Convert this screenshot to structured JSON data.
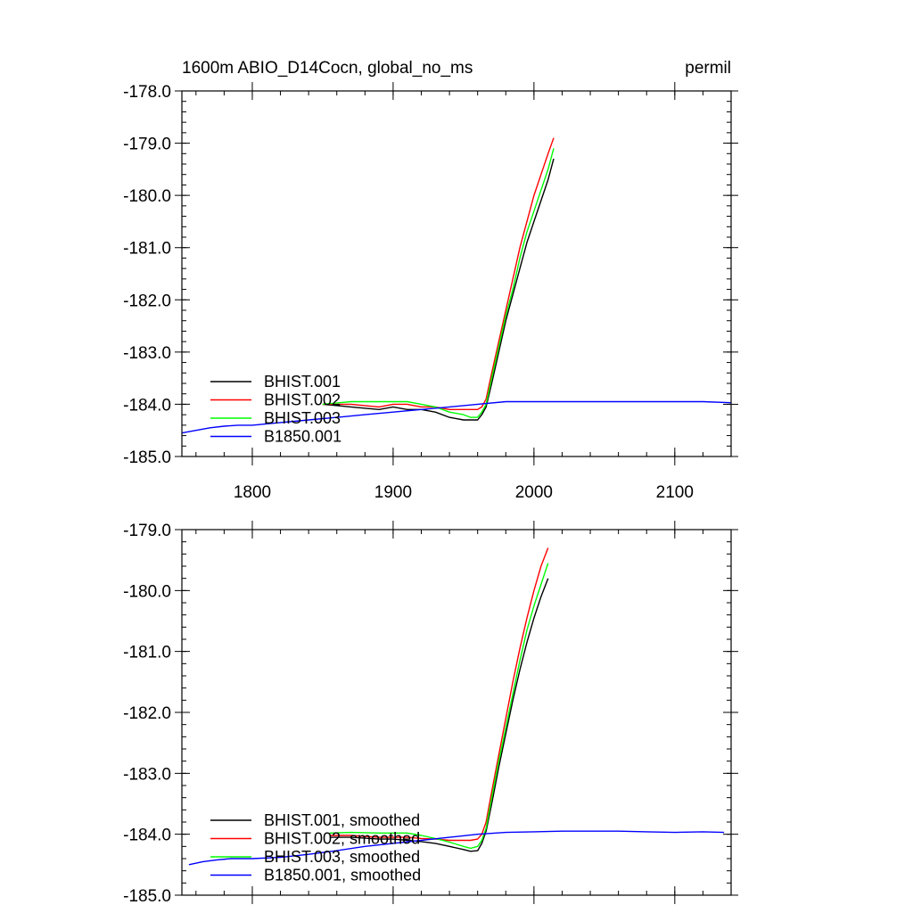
{
  "chart_data": [
    {
      "type": "line",
      "title_left": "1600m ABIO_D14Cocn, global_no_ms",
      "title_right": "permil",
      "xlim": [
        1750,
        2140
      ],
      "ylim": [
        -185.0,
        -178.0
      ],
      "xticks": [
        1800,
        1900,
        2000,
        2100
      ],
      "xtick_labels": [
        "1800",
        "1900",
        "2000",
        "2100"
      ],
      "yticks": [
        -178.0,
        -179.0,
        -180.0,
        -181.0,
        -182.0,
        -183.0,
        -184.0,
        -185.0
      ],
      "ytick_labels": [
        "-178.0",
        "-179.0",
        "-180.0",
        "-181.0",
        "-182.0",
        "-183.0",
        "-184.0",
        "-185.0"
      ],
      "legend_position": "bottom-left",
      "series": [
        {
          "name": "BHIST.001",
          "color": "#000000",
          "x": [
            1850,
            1870,
            1890,
            1900,
            1910,
            1920,
            1930,
            1940,
            1950,
            1955,
            1960,
            1963,
            1966,
            1970,
            1975,
            1980,
            1985,
            1990,
            1995,
            2000,
            2005,
            2010,
            2014
          ],
          "y": [
            -184.0,
            -184.05,
            -184.1,
            -184.05,
            -184.1,
            -184.1,
            -184.15,
            -184.25,
            -184.3,
            -184.3,
            -184.3,
            -184.2,
            -184.05,
            -183.6,
            -183.0,
            -182.4,
            -181.9,
            -181.4,
            -180.9,
            -180.5,
            -180.1,
            -179.7,
            -179.3
          ]
        },
        {
          "name": "BHIST.002",
          "color": "#ff0000",
          "x": [
            1850,
            1870,
            1890,
            1900,
            1910,
            1920,
            1930,
            1940,
            1950,
            1955,
            1960,
            1963,
            1966,
            1970,
            1975,
            1980,
            1985,
            1990,
            1995,
            2000,
            2005,
            2010,
            2014
          ],
          "y": [
            -184.0,
            -184.0,
            -184.05,
            -184.0,
            -184.0,
            -184.05,
            -184.05,
            -184.1,
            -184.1,
            -184.1,
            -184.1,
            -184.05,
            -183.9,
            -183.4,
            -182.8,
            -182.2,
            -181.6,
            -181.0,
            -180.5,
            -180.0,
            -179.6,
            -179.2,
            -178.9
          ]
        },
        {
          "name": "BHIST.003",
          "color": "#00ff00",
          "x": [
            1850,
            1870,
            1890,
            1900,
            1910,
            1920,
            1930,
            1940,
            1950,
            1955,
            1960,
            1963,
            1966,
            1970,
            1975,
            1980,
            1985,
            1990,
            1995,
            2000,
            2005,
            2010,
            2014
          ],
          "y": [
            -184.0,
            -183.95,
            -183.95,
            -183.95,
            -183.95,
            -184.0,
            -184.05,
            -184.15,
            -184.2,
            -184.25,
            -184.25,
            -184.15,
            -184.0,
            -183.5,
            -182.9,
            -182.3,
            -181.8,
            -181.2,
            -180.7,
            -180.3,
            -179.9,
            -179.5,
            -179.1
          ]
        },
        {
          "name": "B1850.001",
          "color": "#0000ff",
          "x": [
            1750,
            1760,
            1770,
            1780,
            1790,
            1800,
            1820,
            1840,
            1860,
            1880,
            1900,
            1920,
            1940,
            1960,
            1980,
            2000,
            2020,
            2040,
            2060,
            2080,
            2100,
            2120,
            2140
          ],
          "y": [
            -184.55,
            -184.5,
            -184.45,
            -184.42,
            -184.4,
            -184.4,
            -184.35,
            -184.3,
            -184.25,
            -184.2,
            -184.15,
            -184.1,
            -184.05,
            -184.0,
            -183.95,
            -183.95,
            -183.95,
            -183.95,
            -183.95,
            -183.95,
            -183.95,
            -183.95,
            -183.97
          ]
        }
      ]
    },
    {
      "type": "line",
      "xlim": [
        1750,
        2140
      ],
      "ylim": [
        -185.0,
        -179.0
      ],
      "xticks": [
        1800,
        1900,
        2000,
        2100
      ],
      "yticks": [
        -179.0,
        -180.0,
        -181.0,
        -182.0,
        -183.0,
        -184.0,
        -185.0
      ],
      "ytick_labels": [
        "-179.0",
        "-180.0",
        "-181.0",
        "-182.0",
        "-183.0",
        "-184.0",
        "-185.0"
      ],
      "legend_position": "bottom-left",
      "series": [
        {
          "name": "BHIST.001, smoothed",
          "color": "#000000",
          "x": [
            1855,
            1870,
            1890,
            1900,
            1910,
            1920,
            1930,
            1940,
            1950,
            1955,
            1960,
            1963,
            1966,
            1970,
            1975,
            1980,
            1985,
            1990,
            1995,
            2000,
            2005,
            2010
          ],
          "y": [
            -184.05,
            -184.05,
            -184.08,
            -184.08,
            -184.1,
            -184.12,
            -184.15,
            -184.2,
            -184.25,
            -184.28,
            -184.27,
            -184.15,
            -183.95,
            -183.5,
            -182.9,
            -182.35,
            -181.8,
            -181.3,
            -180.85,
            -180.45,
            -180.1,
            -179.8
          ]
        },
        {
          "name": "BHIST.002, smoothed",
          "color": "#ff0000",
          "x": [
            1855,
            1870,
            1890,
            1900,
            1910,
            1920,
            1930,
            1940,
            1950,
            1955,
            1960,
            1963,
            1966,
            1970,
            1975,
            1980,
            1985,
            1990,
            1995,
            2000,
            2005,
            2010
          ],
          "y": [
            -184.02,
            -184.02,
            -184.05,
            -184.05,
            -184.05,
            -184.07,
            -184.08,
            -184.1,
            -184.1,
            -184.1,
            -184.08,
            -184.0,
            -183.8,
            -183.3,
            -182.7,
            -182.1,
            -181.5,
            -180.95,
            -180.45,
            -180.0,
            -179.6,
            -179.3
          ]
        },
        {
          "name": "BHIST.003, smoothed",
          "color": "#00ff00",
          "x": [
            1855,
            1870,
            1890,
            1900,
            1910,
            1920,
            1930,
            1940,
            1950,
            1955,
            1960,
            1963,
            1966,
            1970,
            1975,
            1980,
            1985,
            1990,
            1995,
            2000,
            2005,
            2010
          ],
          "y": [
            -183.98,
            -183.97,
            -183.98,
            -183.98,
            -183.98,
            -184.02,
            -184.07,
            -184.13,
            -184.2,
            -184.23,
            -184.2,
            -184.1,
            -183.9,
            -183.4,
            -182.8,
            -182.25,
            -181.7,
            -181.15,
            -180.65,
            -180.25,
            -179.9,
            -179.55
          ]
        },
        {
          "name": "B1850.001, smoothed",
          "color": "#0000ff",
          "x": [
            1755,
            1765,
            1775,
            1785,
            1800,
            1820,
            1840,
            1860,
            1880,
            1900,
            1920,
            1940,
            1960,
            1980,
            2000,
            2020,
            2040,
            2060,
            2080,
            2100,
            2120,
            2135
          ],
          "y": [
            -184.5,
            -184.45,
            -184.42,
            -184.4,
            -184.4,
            -184.38,
            -184.33,
            -184.27,
            -184.2,
            -184.15,
            -184.1,
            -184.05,
            -184.0,
            -183.97,
            -183.96,
            -183.95,
            -183.95,
            -183.95,
            -183.96,
            -183.97,
            -183.96,
            -183.97
          ]
        }
      ]
    }
  ]
}
